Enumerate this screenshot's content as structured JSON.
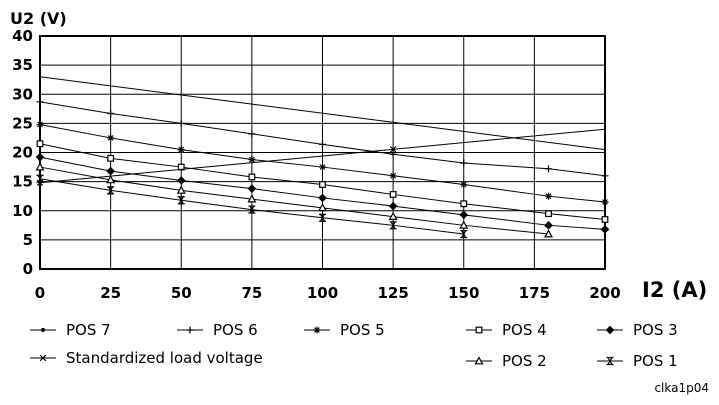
{
  "chart_data": {
    "type": "line",
    "ylabel": "U2 (V)",
    "xlabel": "I2 (A)",
    "xlim": [
      0,
      200
    ],
    "ylim": [
      0,
      40
    ],
    "x_ticks": [
      "0",
      "25",
      "50",
      "75",
      "100",
      "125",
      "150",
      "175",
      "200"
    ],
    "y_ticks": [
      "0",
      "5",
      "10",
      "15",
      "20",
      "25",
      "30",
      "35",
      "40"
    ],
    "grid": true,
    "legend_position": "bottom",
    "series": [
      {
        "name": "POS 7",
        "marker": "dot",
        "x": [
          0,
          200
        ],
        "y": [
          33,
          20.5
        ]
      },
      {
        "name": "POS 6",
        "marker": "plus",
        "x": [
          0,
          25,
          50,
          75,
          100,
          125,
          150,
          180,
          200
        ],
        "y": [
          28.7,
          26.7,
          25,
          23.2,
          21.4,
          19.7,
          18.2,
          17.2,
          16
        ]
      },
      {
        "name": "POS 5",
        "marker": "star",
        "x": [
          0,
          25,
          50,
          75,
          100,
          125,
          150,
          180,
          200
        ],
        "y": [
          24.8,
          22.5,
          20.5,
          18.8,
          17.5,
          16,
          14.5,
          12.5,
          11.5
        ]
      },
      {
        "name": "POS 4",
        "marker": "square",
        "x": [
          0,
          25,
          50,
          75,
          100,
          125,
          150,
          180,
          200
        ],
        "y": [
          21.5,
          19,
          17.5,
          15.8,
          14.5,
          12.8,
          11.2,
          9.5,
          8.5
        ]
      },
      {
        "name": "POS 3",
        "marker": "diamond",
        "x": [
          0,
          25,
          50,
          75,
          100,
          125,
          150,
          180,
          200
        ],
        "y": [
          19.2,
          16.8,
          15.2,
          13.8,
          12.2,
          10.8,
          9.3,
          7.5,
          6.8
        ]
      },
      {
        "name": "Standardized load voltage",
        "marker": "x",
        "x": [
          0,
          200
        ],
        "y": [
          14.8,
          24
        ]
      },
      {
        "name": "POS 2",
        "marker": "triangle",
        "x": [
          0,
          25,
          50,
          75,
          100,
          125,
          150,
          180
        ],
        "y": [
          17.5,
          15.3,
          13.5,
          12,
          10.5,
          9,
          7.5,
          6
        ]
      },
      {
        "name": "POS 1",
        "marker": "hourglass",
        "x": [
          0,
          25,
          50,
          75,
          100,
          125,
          150
        ],
        "y": [
          15.5,
          13.5,
          11.8,
          10.2,
          8.8,
          7.5,
          6
        ]
      }
    ]
  },
  "image_code": "clka1p04"
}
